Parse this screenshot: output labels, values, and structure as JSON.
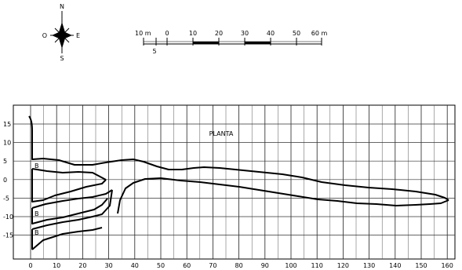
{
  "compass": {
    "north": "N",
    "south": "S",
    "east": "E",
    "west": "O"
  },
  "scale_bar": {
    "labels": [
      "10 m",
      "0",
      "10",
      "20",
      "30",
      "40",
      "50",
      "60 m"
    ],
    "sub_label": "5"
  },
  "plan": {
    "title": "PLANTA",
    "x_ticks": [
      "0",
      "10",
      "20",
      "30",
      "40",
      "50",
      "60",
      "70",
      "80",
      "90",
      "100",
      "110",
      "120",
      "130",
      "140",
      "150",
      "160"
    ],
    "y_ticks": [
      "15",
      "10",
      "5",
      "0",
      "-5",
      "-10",
      "-15"
    ],
    "branch_labels": [
      "B",
      "B",
      "B"
    ]
  }
}
